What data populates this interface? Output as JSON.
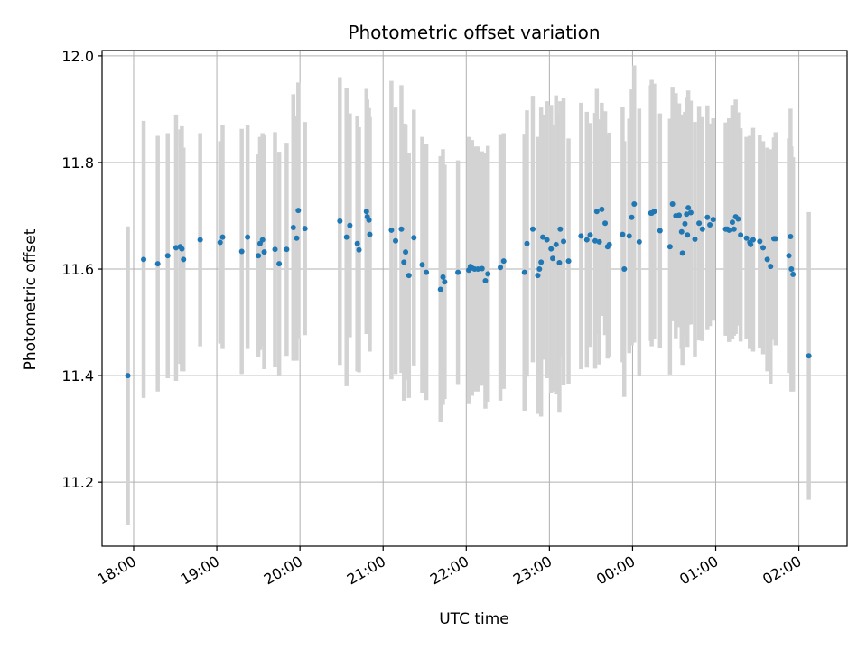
{
  "chart_data": {
    "type": "scatter",
    "title": "Photometric offset variation",
    "xlabel": "UTC time",
    "ylabel": "Photometric offset",
    "ylim": [
      11.08,
      12.01
    ],
    "xlim": [
      17.62,
      26.58
    ],
    "grid": true,
    "yticks": [
      11.2,
      11.4,
      11.6,
      11.8,
      12.0
    ],
    "ytick_labels": [
      "11.2",
      "11.4",
      "11.6",
      "11.8",
      "12.0"
    ],
    "xticks": [
      18,
      19,
      20,
      21,
      22,
      23,
      24,
      25,
      26
    ],
    "xtick_labels": [
      "18:00",
      "19:00",
      "20:00",
      "21:00",
      "22:00",
      "23:00",
      "00:00",
      "01:00",
      "02:00"
    ],
    "colors": {
      "point": "#1f77b4",
      "errorbar": "#d3d3d3",
      "grid": "#b0b0b0",
      "axes": "#000000"
    },
    "series": [
      {
        "name": "Photometric offset",
        "x": [
          17.93,
          18.12,
          18.29,
          18.41,
          18.51,
          18.56,
          18.58,
          18.6,
          18.8,
          19.04,
          19.07,
          19.3,
          19.37,
          19.5,
          19.52,
          19.55,
          19.57,
          19.7,
          19.75,
          19.84,
          19.92,
          19.96,
          19.98,
          20.06,
          20.48,
          20.56,
          20.6,
          20.69,
          20.71,
          20.8,
          20.81,
          20.83,
          20.84,
          21.1,
          21.15,
          21.22,
          21.25,
          21.27,
          21.31,
          21.37,
          21.47,
          21.52,
          21.69,
          21.72,
          21.74,
          21.9,
          22.03,
          22.05,
          22.07,
          22.1,
          22.14,
          22.19,
          22.23,
          22.26,
          22.41,
          22.45,
          22.7,
          22.73,
          22.8,
          22.86,
          22.88,
          22.9,
          22.92,
          22.97,
          23.02,
          23.04,
          23.08,
          23.12,
          23.13,
          23.17,
          23.23,
          23.38,
          23.45,
          23.49,
          23.55,
          23.57,
          23.6,
          23.63,
          23.67,
          23.7,
          23.72,
          23.88,
          23.9,
          23.96,
          23.99,
          24.02,
          24.08,
          24.22,
          24.23,
          24.26,
          24.33,
          24.45,
          24.48,
          24.52,
          24.56,
          24.59,
          24.6,
          24.63,
          24.65,
          24.66,
          24.67,
          24.7,
          24.75,
          24.8,
          24.84,
          24.9,
          24.93,
          24.97,
          25.12,
          25.14,
          25.16,
          25.2,
          25.22,
          25.24,
          25.27,
          25.3,
          25.37,
          25.41,
          25.42,
          25.45,
          25.53,
          25.57,
          25.62,
          25.66,
          25.7,
          25.72,
          25.88,
          25.9,
          25.91,
          25.93,
          26.12
        ],
        "y": [
          11.4,
          11.618,
          11.61,
          11.625,
          11.64,
          11.642,
          11.638,
          11.618,
          11.655,
          11.65,
          11.66,
          11.633,
          11.66,
          11.625,
          11.648,
          11.655,
          11.632,
          11.637,
          11.61,
          11.637,
          11.678,
          11.658,
          11.71,
          11.676,
          11.69,
          11.66,
          11.682,
          11.648,
          11.636,
          11.708,
          11.698,
          11.692,
          11.665,
          11.673,
          11.653,
          11.675,
          11.613,
          11.632,
          11.588,
          11.659,
          11.608,
          11.594,
          11.562,
          11.585,
          11.576,
          11.594,
          11.598,
          11.605,
          11.602,
          11.6,
          11.6,
          11.601,
          11.578,
          11.591,
          11.603,
          11.615,
          11.594,
          11.648,
          11.675,
          11.588,
          11.6,
          11.613,
          11.66,
          11.655,
          11.638,
          11.62,
          11.646,
          11.612,
          11.675,
          11.652,
          11.615,
          11.662,
          11.655,
          11.664,
          11.653,
          11.708,
          11.651,
          11.712,
          11.686,
          11.642,
          11.646,
          11.665,
          11.6,
          11.662,
          11.697,
          11.722,
          11.651,
          11.705,
          11.705,
          11.708,
          11.672,
          11.642,
          11.722,
          11.7,
          11.701,
          11.67,
          11.63,
          11.685,
          11.703,
          11.664,
          11.715,
          11.706,
          11.656,
          11.686,
          11.675,
          11.697,
          11.683,
          11.693,
          11.675,
          11.675,
          11.673,
          11.688,
          11.675,
          11.698,
          11.694,
          11.664,
          11.658,
          11.65,
          11.646,
          11.655,
          11.652,
          11.64,
          11.618,
          11.605,
          11.657,
          11.657,
          11.625,
          11.661,
          11.6,
          11.59,
          11.437
        ],
        "err": [
          0.28,
          0.26,
          0.24,
          0.23,
          0.25,
          0.22,
          0.23,
          0.21,
          0.2,
          0.19,
          0.21,
          0.23,
          0.21,
          0.19,
          0.2,
          0.2,
          0.22,
          0.22,
          0.21,
          0.2,
          0.25,
          0.23,
          0.24,
          0.2,
          0.27,
          0.28,
          0.21,
          0.24,
          0.23,
          0.23,
          0.22,
          0.21,
          0.22,
          0.28,
          0.25,
          0.27,
          0.26,
          0.24,
          0.23,
          0.24,
          0.24,
          0.24,
          0.25,
          0.24,
          0.22,
          0.21,
          0.25,
          0.23,
          0.24,
          0.23,
          0.23,
          0.22,
          0.24,
          0.24,
          0.25,
          0.24,
          0.26,
          0.25,
          0.25,
          0.26,
          0.24,
          0.29,
          0.23,
          0.26,
          0.27,
          0.25,
          0.28,
          0.28,
          0.24,
          0.27,
          0.23,
          0.25,
          0.24,
          0.21,
          0.24,
          0.23,
          0.23,
          0.2,
          0.21,
          0.21,
          0.21,
          0.24,
          0.24,
          0.22,
          0.24,
          0.26,
          0.25,
          0.24,
          0.25,
          0.24,
          0.22,
          0.24,
          0.22,
          0.23,
          0.21,
          0.22,
          0.21,
          0.21,
          0.22,
          0.21,
          0.22,
          0.21,
          0.22,
          0.22,
          0.21,
          0.21,
          0.19,
          0.19,
          0.2,
          0.2,
          0.21,
          0.22,
          0.2,
          0.22,
          0.2,
          0.2,
          0.19,
          0.2,
          0.19,
          0.21,
          0.2,
          0.2,
          0.21,
          0.22,
          0.19,
          0.2,
          0.22,
          0.24,
          0.23,
          0.22,
          0.27
        ]
      }
    ]
  }
}
